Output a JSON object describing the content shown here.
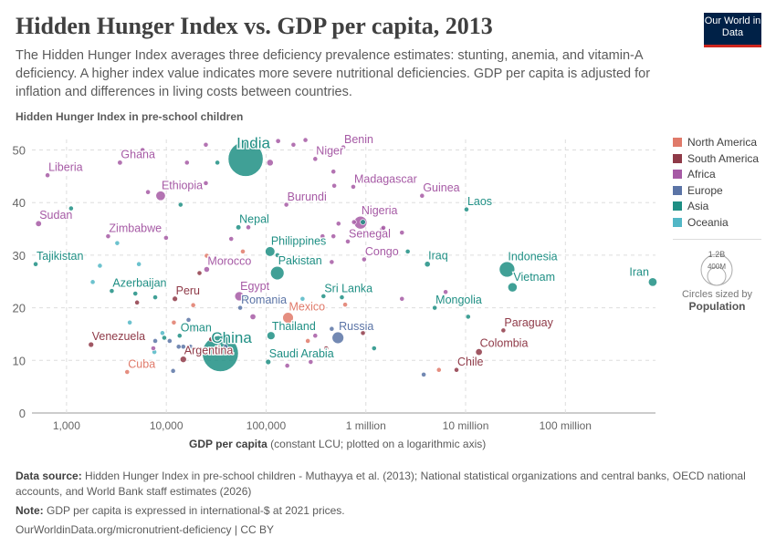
{
  "header": {
    "title": "Hidden Hunger Index vs. GDP per capita, 2013",
    "subtitle": "The Hidden Hunger Index averages three deficiency prevalence estimates: stunting, anemia, and vitamin-A deficiency. A higher index value indicates more severe nutritional deficiencies. GDP per capita is adjusted for inflation and differences in living costs between countries.",
    "logo": "Our World in Data"
  },
  "footer": {
    "source_label": "Data source:",
    "source": "Hidden Hunger Index in pre-school children - Muthayya et al. (2013); National statistical organizations and central banks, OECD national accounts, and World Bank staff estimates (2026)",
    "note_label": "Note:",
    "note": "GDP per capita is expressed in international-$ at 2021 prices.",
    "url": "OurWorldinData.org/micronutrient-deficiency | CC BY"
  },
  "colors": {
    "North America": "#e07a6a",
    "South America": "#8f3a48",
    "Africa": "#a65aa5",
    "Europe": "#5b74a6",
    "Asia": "#1f8f84",
    "Oceania": "#52b7c6"
  },
  "chart_data": {
    "type": "scatter",
    "ylabel": "Hidden Hunger Index in pre-school children",
    "xlabel_bold": "GDP per capita",
    "xlabel": "(constant LCU; plotted on a logarithmic axis)",
    "x_scale": "log",
    "xlim": [
      450,
      800000000
    ],
    "ylim": [
      0,
      52
    ],
    "x_ticks": [
      {
        "v": 1000,
        "label": "1,000"
      },
      {
        "v": 10000,
        "label": "10,000"
      },
      {
        "v": 100000,
        "label": "100,000"
      },
      {
        "v": 1000000,
        "label": "1 million"
      },
      {
        "v": 10000000,
        "label": "10 million"
      },
      {
        "v": 100000000,
        "label": "100 million"
      }
    ],
    "y_ticks": [
      0,
      10,
      20,
      30,
      40,
      50
    ],
    "grid": true,
    "legend": {
      "placement": "right",
      "entries": [
        "North America",
        "South America",
        "Africa",
        "Europe",
        "Asia",
        "Oceania"
      ],
      "size_legend": {
        "large": "1.2B",
        "small": "400M",
        "caption": "Circles sized by",
        "variable": "Population"
      }
    },
    "points": [
      {
        "label": "India",
        "region": "Asia",
        "x": 62400,
        "y": 48.3,
        "pop": 1280000000
      },
      {
        "label": "China",
        "region": "Asia",
        "x": 34800,
        "y": 11.3,
        "pop": 1360000000
      },
      {
        "label": "Niger",
        "region": "Africa",
        "x": 311000,
        "y": 48.3,
        "pop": 18000000
      },
      {
        "label": "Benin",
        "region": "Africa",
        "x": 594000,
        "y": 50.5,
        "pop": 10000000
      },
      {
        "label": "Ghana",
        "region": "Africa",
        "x": 3430,
        "y": 47.6,
        "pop": 26000000
      },
      {
        "label": "Liberia",
        "region": "Africa",
        "x": 645,
        "y": 45.2,
        "pop": 4000000
      },
      {
        "label": "Ethiopia",
        "region": "Africa",
        "x": 8770,
        "y": 41.3,
        "pop": 95000000
      },
      {
        "label": "Sudan",
        "region": "Africa",
        "x": 524,
        "y": 36.0,
        "pop": 37000000
      },
      {
        "label": "Zimbabwe",
        "region": "Africa",
        "x": 2610,
        "y": 33.6,
        "pop": 14000000
      },
      {
        "label": "Tajikistan",
        "region": "Asia",
        "x": 490,
        "y": 28.3,
        "pop": 8000000
      },
      {
        "label": "Azerbaijan",
        "region": "Asia",
        "x": 2840,
        "y": 23.2,
        "pop": 9000000
      },
      {
        "label": "Peru",
        "region": "South America",
        "x": 12200,
        "y": 21.7,
        "pop": 30000000
      },
      {
        "label": "Romania",
        "region": "Europe",
        "x": 55000,
        "y": 20.0,
        "pop": 20000000
      },
      {
        "label": "Egypt",
        "region": "Africa",
        "x": 53900,
        "y": 22.2,
        "pop": 88000000
      },
      {
        "label": "Morocco",
        "region": "Africa",
        "x": 25400,
        "y": 27.3,
        "pop": 33000000
      },
      {
        "label": "Nepal",
        "region": "Asia",
        "x": 52800,
        "y": 35.3,
        "pop": 27000000
      },
      {
        "label": "Philippines",
        "region": "Asia",
        "x": 109600,
        "y": 30.7,
        "pop": 98000000
      },
      {
        "label": "Pakistan",
        "region": "Asia",
        "x": 129500,
        "y": 26.6,
        "pop": 190000000
      },
      {
        "label": "Burundi",
        "region": "Africa",
        "x": 159600,
        "y": 39.6,
        "pop": 10000000
      },
      {
        "label": "Sri Lanka",
        "region": "Asia",
        "x": 376000,
        "y": 22.2,
        "pop": 20000000
      },
      {
        "label": "Mexico",
        "region": "North America",
        "x": 166000,
        "y": 18.1,
        "pop": 120000000
      },
      {
        "label": "Thailand",
        "region": "Asia",
        "x": 112000,
        "y": 14.7,
        "pop": 68000000
      },
      {
        "label": "Russia",
        "region": "Europe",
        "x": 525000,
        "y": 14.3,
        "pop": 143000000
      },
      {
        "label": "Saudi Arabia",
        "region": "Asia",
        "x": 105000,
        "y": 9.7,
        "pop": 30000000
      },
      {
        "label": "Oman",
        "region": "Asia",
        "x": 13600,
        "y": 14.7,
        "pop": 4000000
      },
      {
        "label": "Argentina",
        "region": "South America",
        "x": 14800,
        "y": 10.2,
        "pop": 42000000
      },
      {
        "label": "Venezuela",
        "region": "South America",
        "x": 1760,
        "y": 13.0,
        "pop": 30000000
      },
      {
        "label": "Cuba",
        "region": "North America",
        "x": 4050,
        "y": 7.8,
        "pop": 11000000
      },
      {
        "label": "Madagascar",
        "region": "Africa",
        "x": 748000,
        "y": 43.0,
        "pop": 23000000
      },
      {
        "label": "Nigeria",
        "region": "Africa",
        "x": 884000,
        "y": 36.2,
        "pop": 172000000
      },
      {
        "label": "Senegal",
        "region": "Africa",
        "x": 660000,
        "y": 32.6,
        "pop": 14000000
      },
      {
        "label": "Congo",
        "region": "Africa",
        "x": 961000,
        "y": 29.2,
        "pop": 5000000
      },
      {
        "label": "Guinea",
        "region": "Africa",
        "x": 3660000,
        "y": 41.3,
        "pop": 12000000
      },
      {
        "label": "Laos",
        "region": "Asia",
        "x": 10200000,
        "y": 38.7,
        "pop": 7000000
      },
      {
        "label": "Iraq",
        "region": "Asia",
        "x": 4140000,
        "y": 28.3,
        "pop": 34000000
      },
      {
        "label": "Indonesia",
        "region": "Asia",
        "x": 26000000,
        "y": 27.3,
        "pop": 250000000
      },
      {
        "label": "Vietnam",
        "region": "Asia",
        "x": 29500000,
        "y": 23.9,
        "pop": 90000000
      },
      {
        "label": "Iran",
        "region": "Asia",
        "x": 750000000,
        "y": 24.9,
        "pop": 77000000
      },
      {
        "label": "Mongolia",
        "region": "Asia",
        "x": 4900000,
        "y": 20.0,
        "pop": 3000000
      },
      {
        "label": "Paraguay",
        "region": "South America",
        "x": 23900000,
        "y": 15.7,
        "pop": 6500000
      },
      {
        "label": "Colombia",
        "region": "South America",
        "x": 13600000,
        "y": 11.6,
        "pop": 47000000
      },
      {
        "label": "Chile",
        "region": "South America",
        "x": 8100000,
        "y": 8.2,
        "pop": 17500000
      },
      {
        "label": "",
        "region": "Africa",
        "x": 5780,
        "y": 50.0,
        "pop": 8000000
      },
      {
        "label": "",
        "region": "Africa",
        "x": 24900,
        "y": 51.0,
        "pop": 8000000
      },
      {
        "label": "",
        "region": "Africa",
        "x": 16100,
        "y": 47.6,
        "pop": 7000000
      },
      {
        "label": "",
        "region": "Asia",
        "x": 32500,
        "y": 47.6,
        "pop": 12000000
      },
      {
        "label": "",
        "region": "Africa",
        "x": 109600,
        "y": 47.6,
        "pop": 45000000
      },
      {
        "label": "",
        "region": "Africa",
        "x": 132000,
        "y": 51.7,
        "pop": 25000000
      },
      {
        "label": "",
        "region": "Africa",
        "x": 188000,
        "y": 51.0,
        "pop": 6000000
      },
      {
        "label": "",
        "region": "Africa",
        "x": 248000,
        "y": 51.9,
        "pop": 7000000
      },
      {
        "label": "",
        "region": "Africa",
        "x": 473000,
        "y": 45.9,
        "pop": 10000000
      },
      {
        "label": "",
        "region": "Africa",
        "x": 482000,
        "y": 43.2,
        "pop": 8000000
      },
      {
        "label": "",
        "region": "Africa",
        "x": 6550,
        "y": 42.0,
        "pop": 7000000
      },
      {
        "label": "",
        "region": "Africa",
        "x": 24900,
        "y": 43.7,
        "pop": 6000000
      },
      {
        "label": "",
        "region": "Asia",
        "x": 1110,
        "y": 38.9,
        "pop": 5000000
      },
      {
        "label": "",
        "region": "Asia",
        "x": 13900,
        "y": 39.6,
        "pop": 15000000
      },
      {
        "label": "",
        "region": "Africa",
        "x": 66400,
        "y": 35.3,
        "pop": 7000000
      },
      {
        "label": "",
        "region": "Africa",
        "x": 44700,
        "y": 33.1,
        "pop": 8000000
      },
      {
        "label": "",
        "region": "Africa",
        "x": 9940,
        "y": 33.3,
        "pop": 5000000
      },
      {
        "label": "",
        "region": "Oceania",
        "x": 3220,
        "y": 32.3,
        "pop": 6000000
      },
      {
        "label": "",
        "region": "Africa",
        "x": 368000,
        "y": 33.6,
        "pop": 7000000
      },
      {
        "label": "",
        "region": "Africa",
        "x": 473000,
        "y": 33.6,
        "pop": 7000000
      },
      {
        "label": "",
        "region": "Africa",
        "x": 532000,
        "y": 36.0,
        "pop": 14000000
      },
      {
        "label": "",
        "region": "Africa",
        "x": 760000,
        "y": 36.3,
        "pop": 20000000
      },
      {
        "label": "",
        "region": "Asia",
        "x": 935000,
        "y": 36.3,
        "pop": 30000000
      },
      {
        "label": "",
        "region": "Africa",
        "x": 1460000,
        "y": 35.0,
        "pop": 15000000
      },
      {
        "label": "",
        "region": "North America",
        "x": 58500,
        "y": 30.7,
        "pop": 6000000
      },
      {
        "label": "",
        "region": "Asia",
        "x": 130000,
        "y": 30.0,
        "pop": 4000000
      },
      {
        "label": "",
        "region": "Africa",
        "x": 455000,
        "y": 28.7,
        "pop": 6000000
      },
      {
        "label": "",
        "region": "South America",
        "x": 21500,
        "y": 26.6,
        "pop": 6000000
      },
      {
        "label": "",
        "region": "North America",
        "x": 25400,
        "y": 29.9,
        "pop": 3000000
      },
      {
        "label": "",
        "region": "Oceania",
        "x": 5310,
        "y": 28.3,
        "pop": 6000000
      },
      {
        "label": "",
        "region": "Oceania",
        "x": 2160,
        "y": 28.0,
        "pop": 5000000
      },
      {
        "label": "",
        "region": "Oceania",
        "x": 1830,
        "y": 24.9,
        "pop": 5000000
      },
      {
        "label": "",
        "region": "Asia",
        "x": 4890,
        "y": 22.7,
        "pop": 5000000
      },
      {
        "label": "",
        "region": "Asia",
        "x": 7740,
        "y": 22.0,
        "pop": 5000000
      },
      {
        "label": "",
        "region": "South America",
        "x": 5090,
        "y": 21.0,
        "pop": 5000000
      },
      {
        "label": "",
        "region": "Asia",
        "x": 63600,
        "y": 21.7,
        "pop": 8000000
      },
      {
        "label": "",
        "region": "Oceania",
        "x": 232000,
        "y": 21.7,
        "pop": 5000000
      },
      {
        "label": "",
        "region": "Asia",
        "x": 575000,
        "y": 22.0,
        "pop": 6000000
      },
      {
        "label": "",
        "region": "North America",
        "x": 620000,
        "y": 20.6,
        "pop": 6000000
      },
      {
        "label": "",
        "region": "North America",
        "x": 18600,
        "y": 20.5,
        "pop": 5000000
      },
      {
        "label": "",
        "region": "Africa",
        "x": 73800,
        "y": 18.3,
        "pop": 35000000
      },
      {
        "label": "",
        "region": "South America",
        "x": 18600,
        "y": 16.0,
        "pop": 60000000
      },
      {
        "label": "",
        "region": "Europe",
        "x": 16700,
        "y": 17.7,
        "pop": 5000000
      },
      {
        "label": "",
        "region": "North America",
        "x": 11900,
        "y": 17.2,
        "pop": 4000000
      },
      {
        "label": "",
        "region": "Oceania",
        "x": 4300,
        "y": 17.2,
        "pop": 6000000
      },
      {
        "label": "",
        "region": "Oceania",
        "x": 9140,
        "y": 15.2,
        "pop": 5000000
      },
      {
        "label": "",
        "region": "Asia",
        "x": 9540,
        "y": 14.3,
        "pop": 6000000
      },
      {
        "label": "",
        "region": "Europe",
        "x": 7740,
        "y": 13.7,
        "pop": 5000000
      },
      {
        "label": "",
        "region": "Europe",
        "x": 10800,
        "y": 13.7,
        "pop": 5000000
      },
      {
        "label": "",
        "region": "Africa",
        "x": 7410,
        "y": 12.3,
        "pop": 4000000
      },
      {
        "label": "",
        "region": "Oceania",
        "x": 7590,
        "y": 11.6,
        "pop": 5000000
      },
      {
        "label": "",
        "region": "Europe",
        "x": 13300,
        "y": 12.6,
        "pop": 4000000
      },
      {
        "label": "",
        "region": "Europe",
        "x": 14800,
        "y": 12.6,
        "pop": 5000000
      },
      {
        "label": "",
        "region": "Europe",
        "x": 17400,
        "y": 12.6,
        "pop": 4000000
      },
      {
        "label": "",
        "region": "South America",
        "x": 28100,
        "y": 14.0,
        "pop": 5000000
      },
      {
        "label": "",
        "region": "Europe",
        "x": 39300,
        "y": 12.6,
        "pop": 10000000
      },
      {
        "label": "",
        "region": "Europe",
        "x": 11700,
        "y": 8.0,
        "pop": 4000000
      },
      {
        "label": "",
        "region": "North America",
        "x": 262000,
        "y": 13.7,
        "pop": 5000000
      },
      {
        "label": "",
        "region": "Africa",
        "x": 311000,
        "y": 14.7,
        "pop": 5000000
      },
      {
        "label": "",
        "region": "Europe",
        "x": 455000,
        "y": 16.0,
        "pop": 4000000
      },
      {
        "label": "",
        "region": "South America",
        "x": 400000,
        "y": 12.3,
        "pop": 3000000
      },
      {
        "label": "",
        "region": "Africa",
        "x": 280000,
        "y": 9.7,
        "pop": 5000000
      },
      {
        "label": "",
        "region": "Africa",
        "x": 163000,
        "y": 9.0,
        "pop": 5000000
      },
      {
        "label": "",
        "region": "South America",
        "x": 935000,
        "y": 15.2,
        "pop": 3000000
      },
      {
        "label": "",
        "region": "Asia",
        "x": 1210000,
        "y": 12.3,
        "pop": 5000000
      },
      {
        "label": "",
        "region": "Africa",
        "x": 1500000,
        "y": 35.2,
        "pop": 12000000
      },
      {
        "label": "",
        "region": "Africa",
        "x": 2300000,
        "y": 34.3,
        "pop": 14000000
      },
      {
        "label": "",
        "region": "Asia",
        "x": 2630000,
        "y": 30.7,
        "pop": 10000000
      },
      {
        "label": "",
        "region": "Africa",
        "x": 6300000,
        "y": 23.0,
        "pop": 5000000
      },
      {
        "label": "",
        "region": "Africa",
        "x": 2300000,
        "y": 21.7,
        "pop": 5000000
      },
      {
        "label": "",
        "region": "Asia",
        "x": 10600000,
        "y": 18.3,
        "pop": 4000000
      },
      {
        "label": "",
        "region": "Europe",
        "x": 3800000,
        "y": 7.3,
        "pop": 5000000
      },
      {
        "label": "",
        "region": "North America",
        "x": 5400000,
        "y": 8.2,
        "pop": 5000000
      }
    ]
  }
}
